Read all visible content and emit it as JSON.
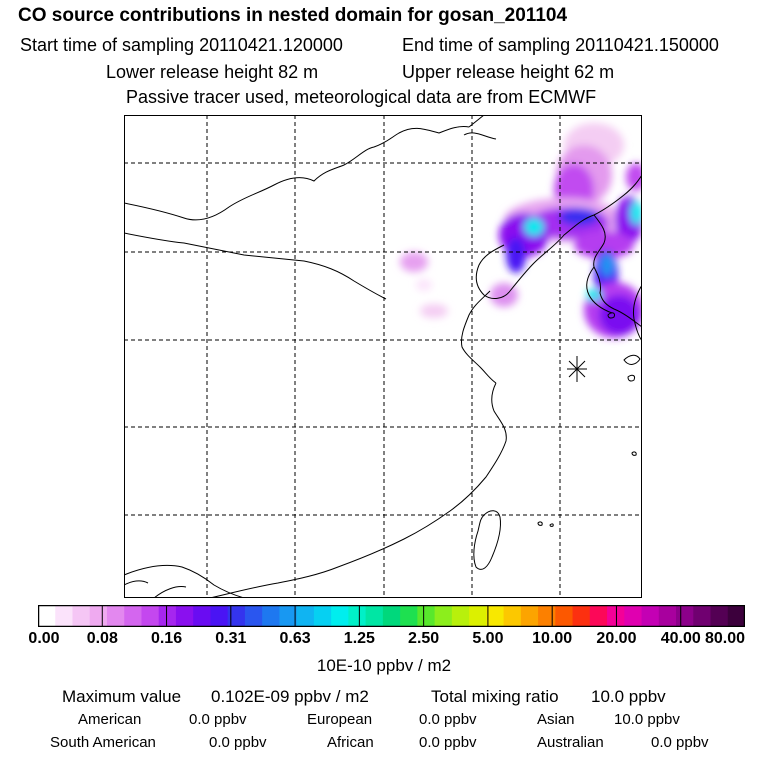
{
  "header": {
    "title": "CO  source contributions in nested domain for gosan_201104",
    "start_label": "Start time of sampling 20110421.120000",
    "end_label": "End time of sampling 20110421.150000",
    "lower_label": "Lower release height   82 m",
    "upper_label": "Upper release height   62 m",
    "note": "Passive tracer used, meteorological data are from ECMWF"
  },
  "colorbar": {
    "ticks": [
      "0.00",
      "0.08",
      "0.16",
      "0.31",
      "0.63",
      "1.25",
      "2.50",
      "5.00",
      "10.00",
      "20.00",
      "40.00",
      "80.00"
    ],
    "unit": "10E-10 ppbv / m2",
    "colors": [
      "#ffffff",
      "#fbe3fb",
      "#f5c6f5",
      "#efaaf0",
      "#e388ef",
      "#d466ef",
      "#c447ef",
      "#a626ef",
      "#8a10ef",
      "#6a0cf2",
      "#4a14f4",
      "#3434ee",
      "#2a56ef",
      "#1e78f0",
      "#1898f2",
      "#10b4f2",
      "#06d0f2",
      "#00eeee",
      "#00f0c8",
      "#00e6a4",
      "#00d87c",
      "#1ee050",
      "#58e82c",
      "#8cee1c",
      "#b8f00c",
      "#dcf000",
      "#f8e800",
      "#fcc800",
      "#fca400",
      "#fc8000",
      "#fc5800",
      "#fc3010",
      "#fc0858",
      "#f40098",
      "#e000b0",
      "#c400b4",
      "#a8009e",
      "#8c008a",
      "#700070",
      "#540054",
      "#3c003c"
    ]
  },
  "summary": {
    "max_label": "Maximum value",
    "max_value": "0.102E-09 ppbv / m2",
    "total_label": "Total mixing ratio",
    "total_value": "10.0 ppbv",
    "american_label": "American",
    "american_value": "0.0 ppbv",
    "european_label": "European",
    "european_value": "0.0 ppbv",
    "asian_label": "Asian",
    "asian_value": "10.0 ppbv",
    "south_american_label": "South American",
    "south_american_value": "0.0 ppbv",
    "african_label": "African",
    "african_value": "0.0 ppbv",
    "australian_label": "Australian",
    "australian_value": "0.0 ppbv"
  }
}
